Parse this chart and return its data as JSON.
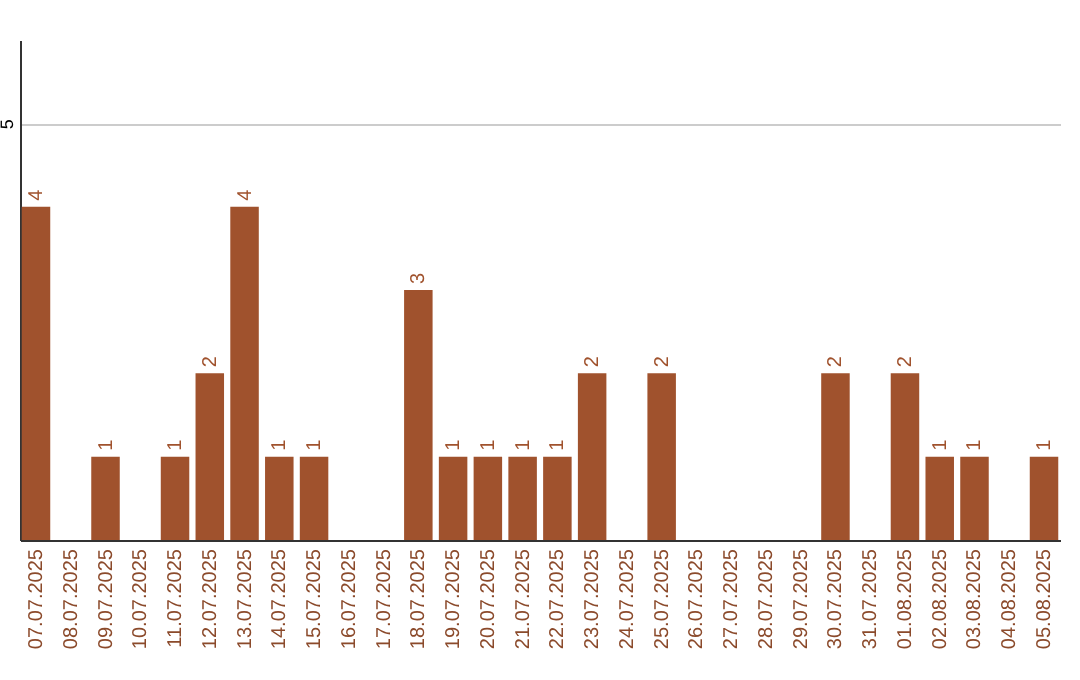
{
  "chart_data": {
    "type": "bar",
    "categories": [
      "07.07.2025",
      "08.07.2025",
      "09.07.2025",
      "10.07.2025",
      "11.07.2025",
      "12.07.2025",
      "13.07.2025",
      "14.07.2025",
      "15.07.2025",
      "16.07.2025",
      "17.07.2025",
      "18.07.2025",
      "19.07.2025",
      "20.07.2025",
      "21.07.2025",
      "22.07.2025",
      "23.07.2025",
      "24.07.2025",
      "25.07.2025",
      "26.07.2025",
      "27.07.2025",
      "28.07.2025",
      "29.07.2025",
      "30.07.2025",
      "31.07.2025",
      "01.08.2025",
      "02.08.2025",
      "03.08.2025",
      "04.08.2025",
      "05.08.2025"
    ],
    "values": [
      4,
      0,
      1,
      0,
      1,
      2,
      4,
      1,
      1,
      0,
      0,
      3,
      1,
      1,
      1,
      1,
      2,
      0,
      2,
      0,
      0,
      0,
      0,
      2,
      0,
      2,
      1,
      1,
      0,
      1
    ],
    "value_labels": [
      "4",
      null,
      "1",
      null,
      "1",
      "2",
      "4",
      "1",
      "1",
      null,
      null,
      "3",
      "1",
      "1",
      "1",
      "1",
      "2",
      null,
      "2",
      null,
      null,
      null,
      null,
      "2",
      null,
      "2",
      "1",
      "1",
      null,
      "1"
    ],
    "color": "#a0522d",
    "ylim": [
      0,
      6
    ],
    "yticks": [
      5
    ],
    "grid": "y"
  }
}
